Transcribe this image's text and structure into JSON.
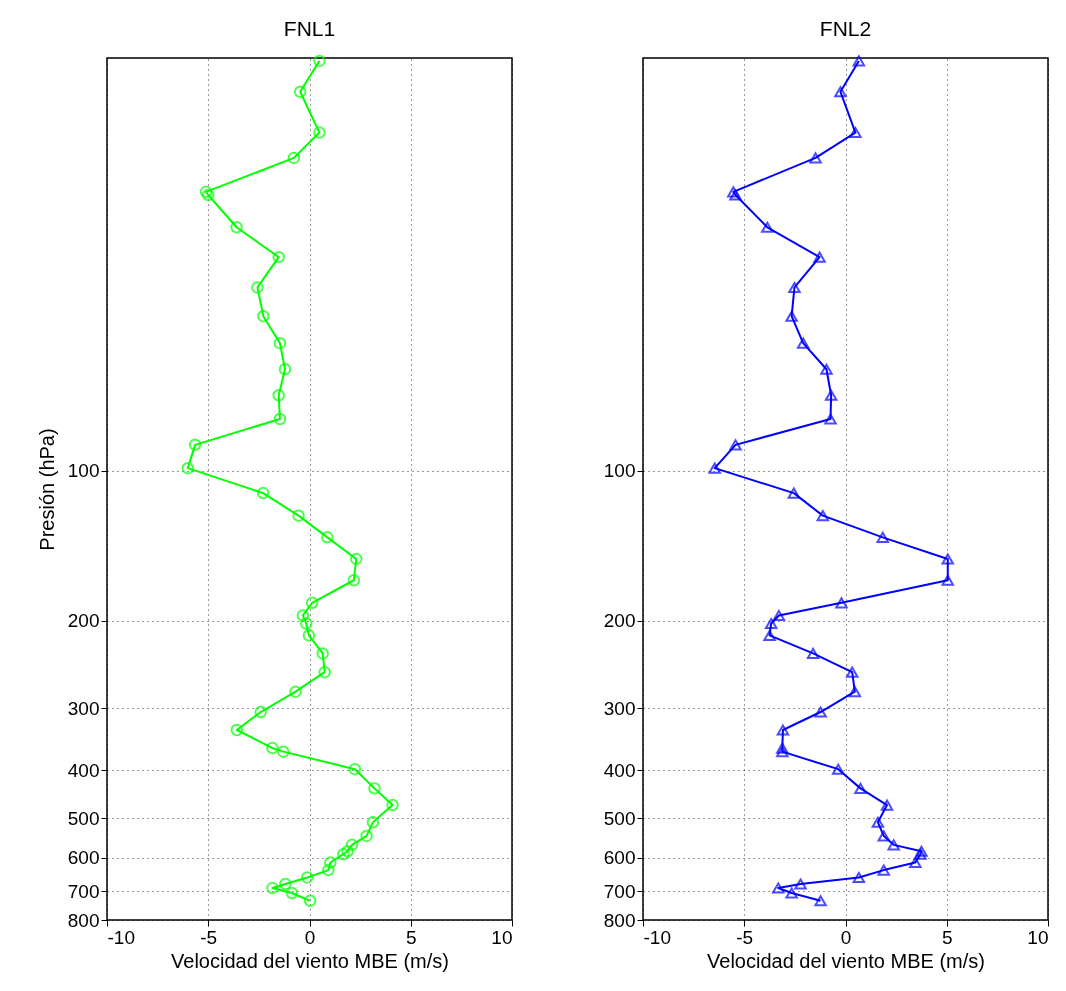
{
  "chart_data": [
    {
      "type": "line",
      "title": "FNL1",
      "xlabel": "Velocidad del viento MBE (m/s)",
      "ylabel": "Presión (hPa)",
      "xlim": [
        -10,
        10
      ],
      "xticks": [
        -10,
        -5,
        0,
        5,
        10
      ],
      "ylim": [
        800,
        14.8
      ],
      "yticks": [
        100,
        200,
        300,
        400,
        500,
        600,
        700,
        800
      ],
      "log": "y",
      "grid": true,
      "marker": "circle",
      "series": [
        {
          "color": "#00ff00",
          "x": [
            0.49,
            -0.46,
            0.49,
            -0.77,
            -5.11,
            -5.0,
            -3.6,
            -1.52,
            -2.57,
            -2.28,
            -1.46,
            -1.21,
            -1.52,
            -1.46,
            -5.65,
            -6.01,
            -2.29,
            -0.54,
            0.88,
            2.31,
            2.19,
            0.13,
            -0.33,
            -0.16,
            -0.03,
            0.65,
            0.75,
            -0.69,
            -2.41,
            -3.59,
            -1.83,
            -1.29,
            2.24,
            3.21,
            4.1,
            3.13,
            2.82,
            2.1,
            1.88,
            1.67,
            1.03,
            0.93,
            -0.11,
            -1.19,
            -1.83,
            -0.87,
            0.03
          ],
          "values": [
            15,
            17.3,
            20.9,
            23.5,
            27.5,
            27.9,
            32.4,
            37.2,
            42.8,
            48.9,
            55.4,
            62.5,
            70.5,
            78.7,
            88.7,
            98.8,
            110.9,
            123.1,
            136.1,
            150.4,
            166,
            184.3,
            195.4,
            202.8,
            214.3,
            232.9,
            254,
            278,
            305.5,
            332,
            361,
            367,
            398,
            435,
            470,
            509,
            542,
            565,
            582,
            590,
            613,
            635,
            657,
            677,
            690,
            706,
            732
          ]
        }
      ]
    },
    {
      "type": "line",
      "title": "FNL2",
      "xlabel": "Velocidad del viento MBE (m/s)",
      "xlim": [
        -10,
        10
      ],
      "xticks": [
        -10,
        -5,
        0,
        5,
        10
      ],
      "ylim": [
        800,
        14.8
      ],
      "yticks": [
        100,
        200,
        300,
        400,
        500,
        600,
        700,
        800
      ],
      "log": "y",
      "grid": true,
      "marker": "triangle",
      "series": [
        {
          "color": "#0000ff",
          "x": [
            0.66,
            -0.25,
            0.49,
            -1.48,
            -5.54,
            -5.43,
            -3.86,
            -1.28,
            -2.52,
            -2.66,
            -2.09,
            -0.94,
            -0.71,
            -0.74,
            -5.43,
            -6.46,
            -2.55,
            -1.12,
            1.84,
            5.05,
            5.05,
            -0.2,
            -3.29,
            -3.67,
            -3.75,
            -1.6,
            0.33,
            0.46,
            -1.23,
            -3.09,
            -3.12,
            -3.12,
            -0.36,
            0.74,
            2.05,
            1.6,
            1.89,
            2.38,
            3.75,
            3.7,
            3.45,
            1.89,
            0.66,
            -2.22,
            -3.32,
            -2.66,
            -1.23
          ],
          "values": [
            15,
            17.3,
            20.9,
            23.5,
            27.5,
            27.9,
            32.4,
            37.2,
            42.8,
            48.9,
            55.4,
            62.5,
            70.5,
            78.7,
            88.7,
            98.8,
            110.9,
            123.1,
            136.1,
            150.4,
            166,
            184.3,
            195.4,
            202.8,
            214.3,
            232.9,
            254,
            278,
            305.5,
            332,
            361,
            367,
            398,
            435,
            470,
            509,
            542,
            565,
            582,
            590,
            613,
            635,
            657,
            677,
            690,
            706,
            732
          ]
        }
      ]
    }
  ]
}
